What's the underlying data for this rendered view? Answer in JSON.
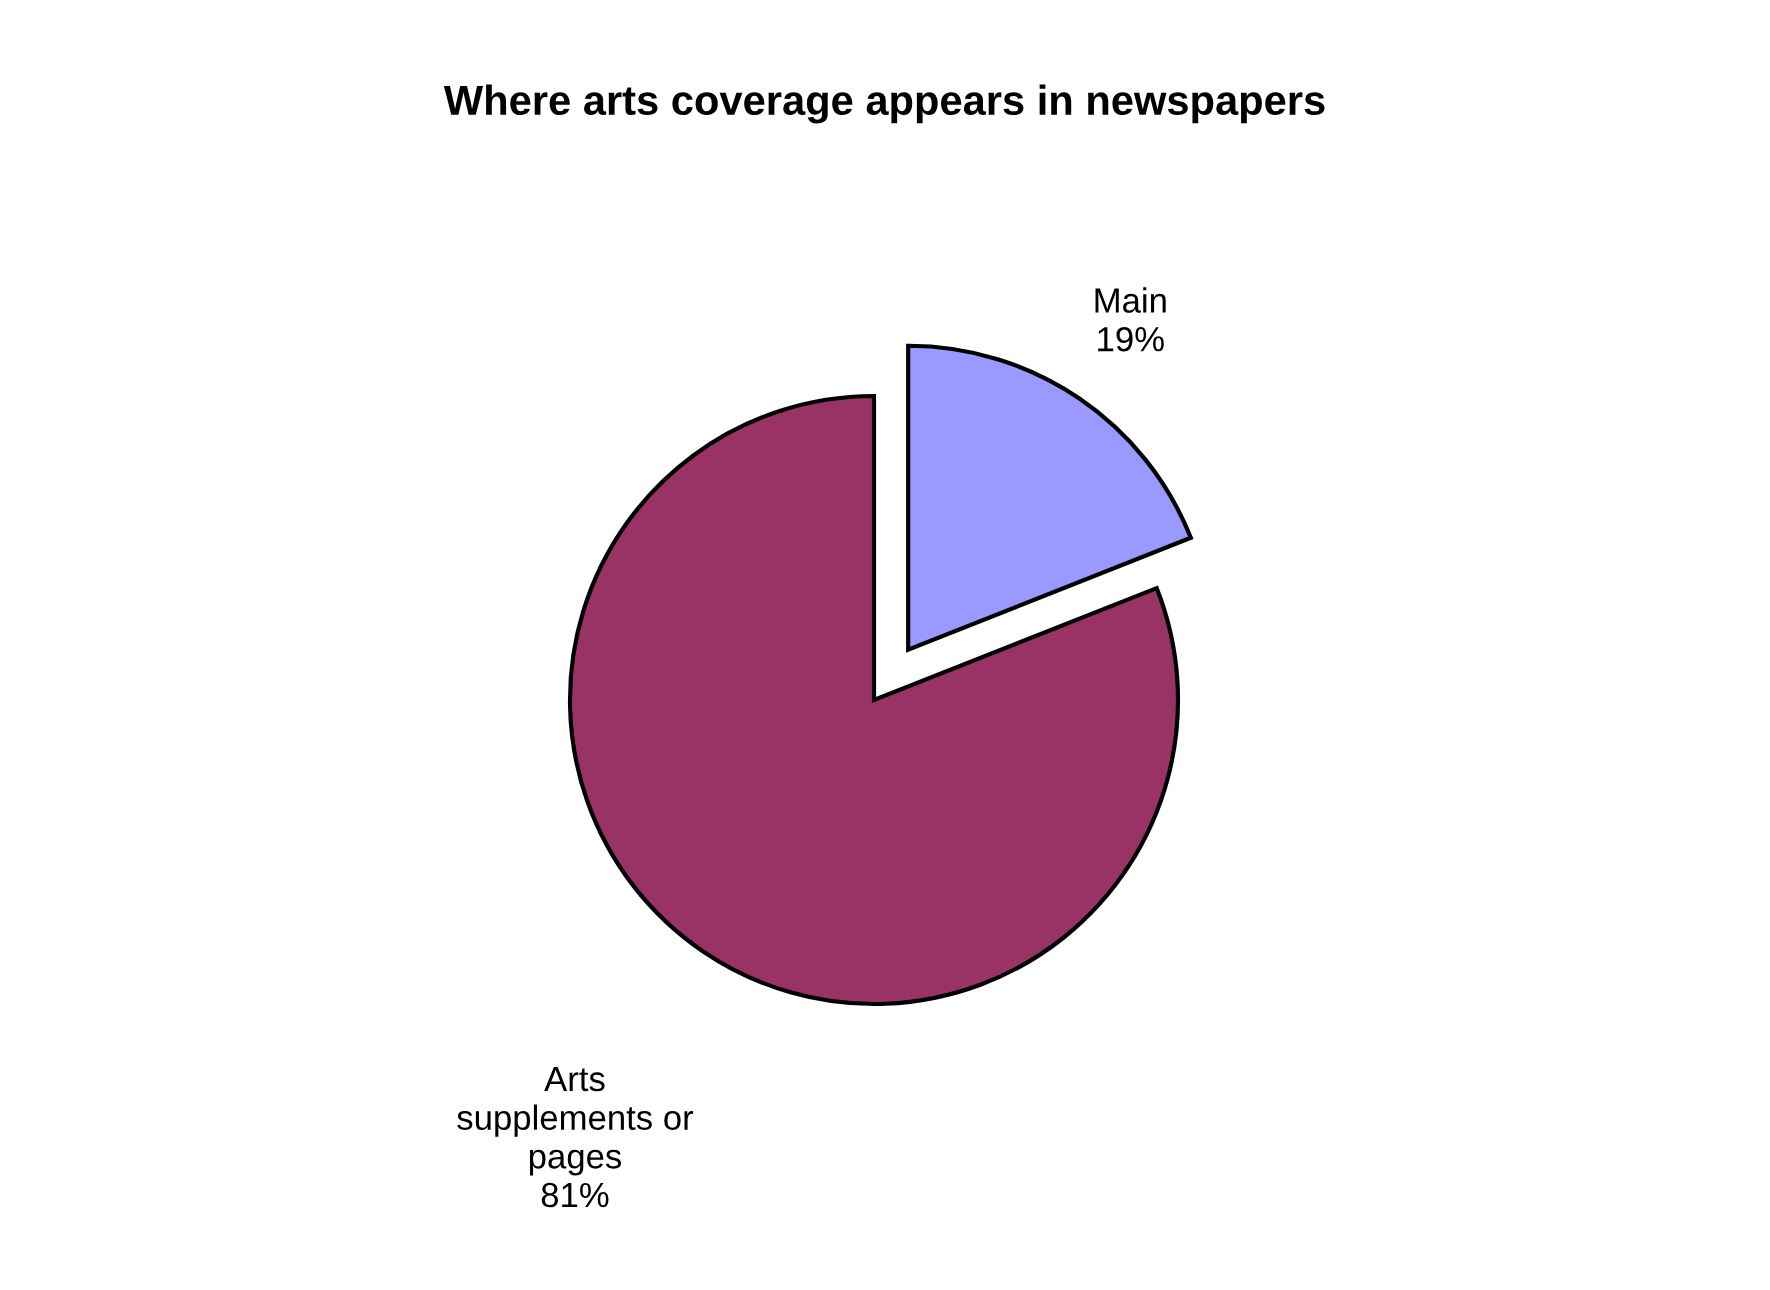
{
  "chart_data": {
    "type": "pie",
    "title": "Where arts coverage appears in newspapers",
    "categories": [
      "Main",
      "Arts supplements or pages"
    ],
    "values": [
      19,
      81
    ],
    "colors": [
      "#9999ff",
      "#993366"
    ],
    "value_labels": [
      "19%",
      "81%"
    ],
    "legend": false
  }
}
